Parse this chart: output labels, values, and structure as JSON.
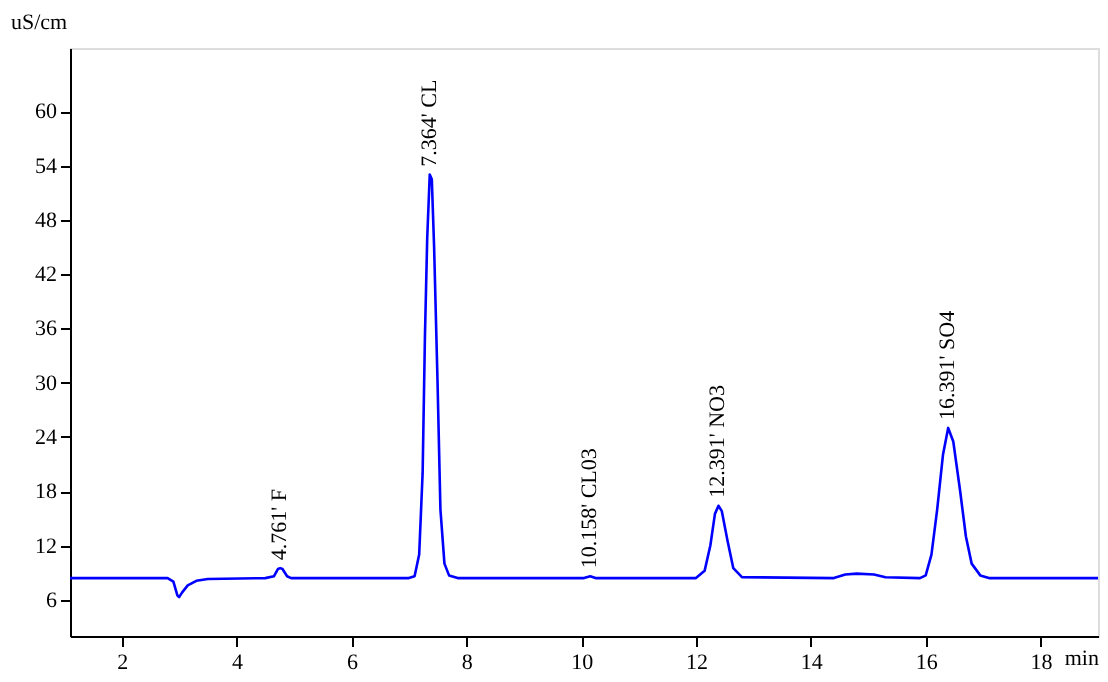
{
  "chart_data": {
    "type": "line",
    "xlabel": "min",
    "ylabel": "uS/cm",
    "xlim": [
      1.1,
      19
    ],
    "ylim": [
      2,
      67
    ],
    "xticks": [
      2,
      4,
      6,
      8,
      10,
      12,
      14,
      16,
      18
    ],
    "yticks": [
      6,
      12,
      18,
      24,
      30,
      36,
      42,
      48,
      54,
      60
    ],
    "grid": false,
    "marker": "none",
    "line_style": "solid",
    "series": [
      {
        "color": "#0000ff",
        "x": [
          1.1,
          2.8,
          2.9,
          2.97,
          3.0,
          3.05,
          3.15,
          3.3,
          3.5,
          4.5,
          4.65,
          4.72,
          4.761,
          4.8,
          4.88,
          4.95,
          7.0,
          7.1,
          7.18,
          7.24,
          7.28,
          7.32,
          7.364,
          7.4,
          7.44,
          7.5,
          7.55,
          7.62,
          7.7,
          7.85,
          10.05,
          10.158,
          10.25,
          12.0,
          12.15,
          12.25,
          12.33,
          12.391,
          12.45,
          12.55,
          12.65,
          12.8,
          14.4,
          14.6,
          14.8,
          15.1,
          15.3,
          15.9,
          16.0,
          16.1,
          16.2,
          16.3,
          16.391,
          16.48,
          16.6,
          16.7,
          16.8,
          16.95,
          17.1,
          19
        ],
        "values": [
          8.4,
          8.4,
          8.0,
          6.5,
          6.3,
          6.8,
          7.6,
          8.1,
          8.3,
          8.4,
          8.6,
          9.4,
          9.5,
          9.4,
          8.6,
          8.4,
          8.4,
          8.6,
          11,
          20,
          35,
          46,
          53.0,
          52.5,
          45,
          30,
          16,
          10,
          8.7,
          8.4,
          8.4,
          8.6,
          8.4,
          8.4,
          9.2,
          12,
          15.5,
          16.4,
          15.8,
          12.5,
          9.5,
          8.5,
          8.4,
          8.8,
          8.9,
          8.8,
          8.5,
          8.4,
          8.7,
          11,
          16,
          22,
          25.0,
          23.5,
          18,
          13,
          10,
          8.7,
          8.4,
          8.4
        ]
      }
    ],
    "annotations": [
      {
        "text": "4.761'  F",
        "x": 4.761,
        "y": 9.5
      },
      {
        "text": "7.364'  CL",
        "x": 7.364,
        "y": 53.0
      },
      {
        "text": "10.158'  CL03",
        "x": 10.158,
        "y": 8.6
      },
      {
        "text": "12.391'  NO3",
        "x": 12.391,
        "y": 16.4
      },
      {
        "text": "16.391'  SO4",
        "x": 16.391,
        "y": 25.0
      }
    ]
  }
}
